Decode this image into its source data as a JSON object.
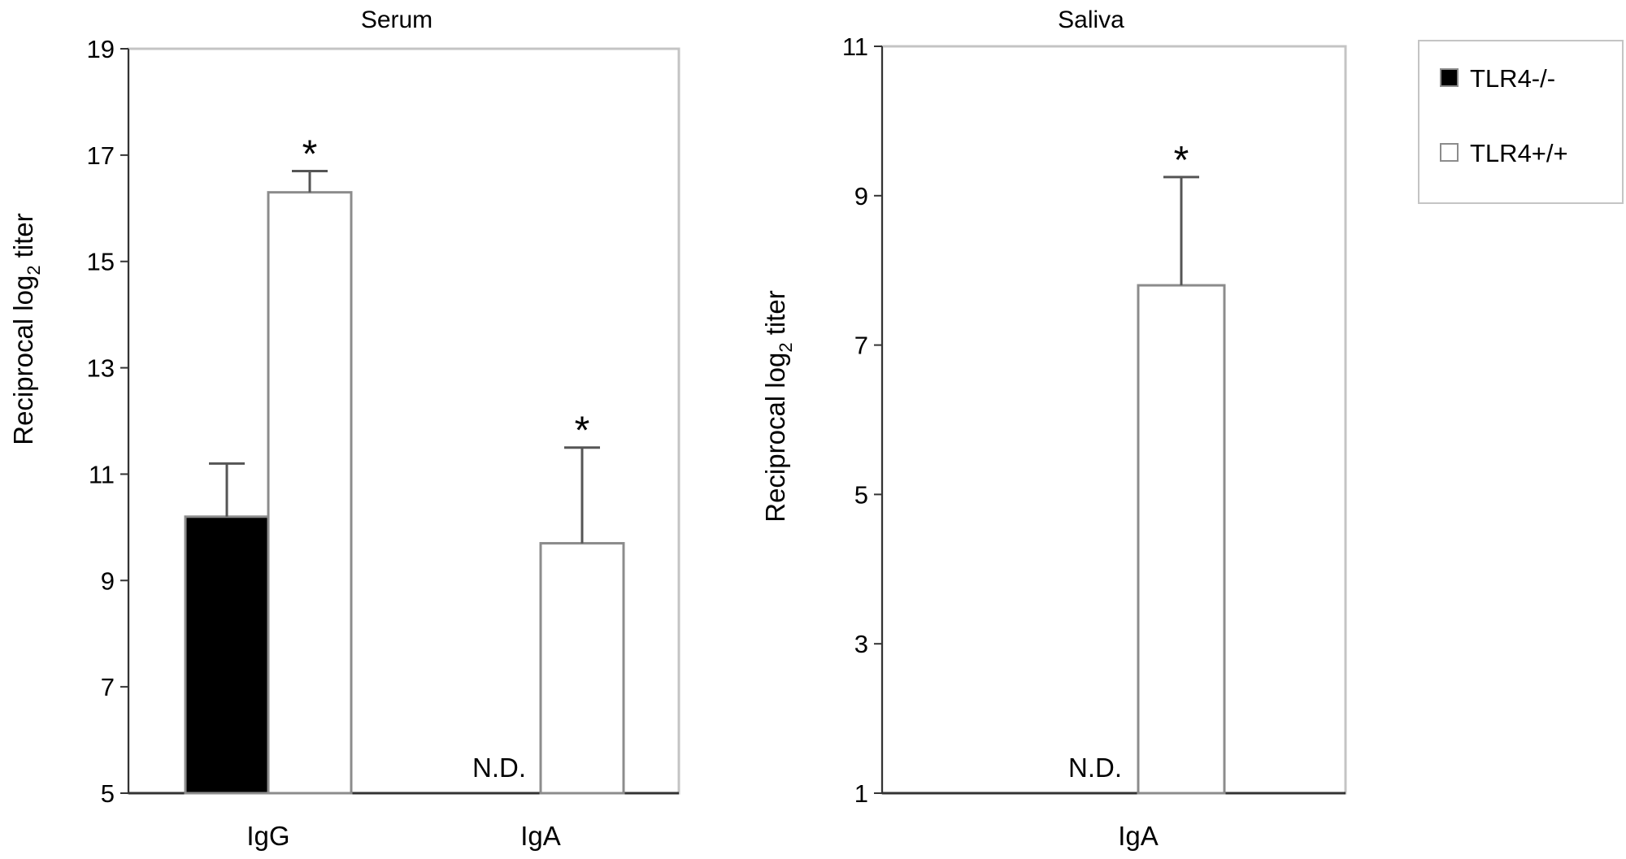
{
  "colors": {
    "frame": "#c4c4c4",
    "axis": "#333333",
    "errorbar": "#555555",
    "bar_outline": "#8c8c8c",
    "tlr4_ko": "#000000",
    "tlr4_wt": "#ffffff"
  },
  "legend": {
    "items": [
      {
        "label": "TLR4-/-",
        "color": "#000000"
      },
      {
        "label": "TLR4+/+",
        "color": "#ffffff"
      }
    ]
  },
  "chart_data": [
    {
      "type": "bar",
      "title": "Serum",
      "ylabel_main": "Reciprocal log",
      "ylabel_sub": "2",
      "ylabel_tail": " titer",
      "ylim": [
        5,
        19
      ],
      "yticks": [
        5,
        7,
        9,
        11,
        13,
        15,
        17,
        19
      ],
      "grid": false,
      "categories": [
        "IgG",
        "IgA"
      ],
      "series": [
        {
          "name": "TLR4-/-",
          "values": [
            10.2,
            null
          ],
          "errors": [
            1.0,
            null
          ],
          "labels": [
            null,
            "N.D."
          ]
        },
        {
          "name": "TLR4+/+",
          "values": [
            16.3,
            9.7
          ],
          "errors": [
            0.4,
            1.8
          ],
          "labels": [
            null,
            null
          ]
        }
      ],
      "annotations": [
        {
          "category": "IgG",
          "series": "TLR4+/+",
          "text": "*"
        },
        {
          "category": "IgA",
          "series": "TLR4+/+",
          "text": "*"
        }
      ]
    },
    {
      "type": "bar",
      "title": "Saliva",
      "ylabel_main": "Reciprocal log",
      "ylabel_sub": "2",
      "ylabel_tail": " titer",
      "ylim": [
        1,
        11
      ],
      "yticks": [
        1,
        3,
        5,
        7,
        9,
        11
      ],
      "grid": false,
      "categories": [
        "IgA"
      ],
      "series": [
        {
          "name": "TLR4-/-",
          "values": [
            null
          ],
          "errors": [
            null
          ],
          "labels": [
            "N.D."
          ]
        },
        {
          "name": "TLR4+/+",
          "values": [
            7.8
          ],
          "errors": [
            1.45
          ],
          "labels": [
            null
          ]
        }
      ],
      "annotations": [
        {
          "category": "IgA",
          "series": "TLR4+/+",
          "text": "*"
        }
      ]
    }
  ]
}
